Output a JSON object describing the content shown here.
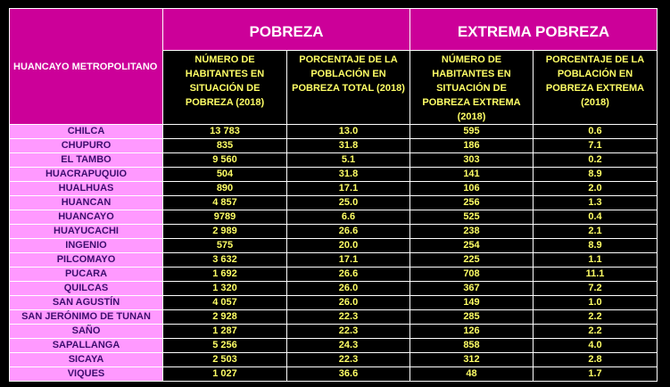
{
  "header": {
    "region_label": "HUANCAYO METROPOLITANO",
    "group_pobreza": "POBREZA",
    "group_extrema": "EXTREMA POBREZA",
    "col1": "NÚMERO DE HABITANTES EN SITUACIÓN DE POBREZA (2018)",
    "col2": "PORCENTAJE DE LA POBLACIÓN EN POBREZA TOTAL (2018)",
    "col3": "NÚMERO DE HABITANTES EN SITUACIÓN DE POBREZA EXTREMA (2018)",
    "col4": "PORCENTAJE DE LA POBLACIÓN EN POBREZA EXTREMA (2018)"
  },
  "rows": [
    {
      "district": "CHILCA",
      "hab_pobreza": "13 783",
      "pct_pobreza": "13.0",
      "hab_extrema": "595",
      "pct_extrema": "0.6"
    },
    {
      "district": "CHUPURO",
      "hab_pobreza": "835",
      "pct_pobreza": "31.8",
      "hab_extrema": "186",
      "pct_extrema": "7.1"
    },
    {
      "district": "EL TAMBO",
      "hab_pobreza": "9 560",
      "pct_pobreza": "5.1",
      "hab_extrema": "303",
      "pct_extrema": "0.2"
    },
    {
      "district": "HUACRAPUQUIO",
      "hab_pobreza": "504",
      "pct_pobreza": "31.8",
      "hab_extrema": "141",
      "pct_extrema": "8.9"
    },
    {
      "district": "HUALHUAS",
      "hab_pobreza": "890",
      "pct_pobreza": "17.1",
      "hab_extrema": "106",
      "pct_extrema": "2.0"
    },
    {
      "district": "HUANCAN",
      "hab_pobreza": "4 857",
      "pct_pobreza": "25.0",
      "hab_extrema": "256",
      "pct_extrema": "1.3"
    },
    {
      "district": "HUANCAYO",
      "hab_pobreza": "9789",
      "pct_pobreza": "6.6",
      "hab_extrema": "525",
      "pct_extrema": "0.4"
    },
    {
      "district": "HUAYUCACHI",
      "hab_pobreza": "2 989",
      "pct_pobreza": "26.6",
      "hab_extrema": "238",
      "pct_extrema": "2.1"
    },
    {
      "district": "INGENIO",
      "hab_pobreza": "575",
      "pct_pobreza": "20.0",
      "hab_extrema": "254",
      "pct_extrema": "8.9"
    },
    {
      "district": "PILCOMAYO",
      "hab_pobreza": "3 632",
      "pct_pobreza": "17.1",
      "hab_extrema": "225",
      "pct_extrema": "1.1"
    },
    {
      "district": "PUCARA",
      "hab_pobreza": "1 692",
      "pct_pobreza": "26.6",
      "hab_extrema": "708",
      "pct_extrema": "11.1"
    },
    {
      "district": "QUILCAS",
      "hab_pobreza": "1 320",
      "pct_pobreza": "26.0",
      "hab_extrema": "367",
      "pct_extrema": "7.2"
    },
    {
      "district": "SAN AGUSTÍN",
      "hab_pobreza": "4 057",
      "pct_pobreza": "26.0",
      "hab_extrema": "149",
      "pct_extrema": "1.0"
    },
    {
      "district": "SAN JERÓNIMO DE TUNAN",
      "hab_pobreza": "2 928",
      "pct_pobreza": "22.3",
      "hab_extrema": "285",
      "pct_extrema": "2.2"
    },
    {
      "district": "SAÑO",
      "hab_pobreza": "1 287",
      "pct_pobreza": "22.3",
      "hab_extrema": "126",
      "pct_extrema": "2.2"
    },
    {
      "district": "SAPALLANGA",
      "hab_pobreza": "5 256",
      "pct_pobreza": "24.3",
      "hab_extrema": "858",
      "pct_extrema": "4.0"
    },
    {
      "district": "SICAYA",
      "hab_pobreza": "2 503",
      "pct_pobreza": "22.3",
      "hab_extrema": "312",
      "pct_extrema": "2.8"
    },
    {
      "district": "VIQUES",
      "hab_pobreza": "1 027",
      "pct_pobreza": "36.6",
      "hab_extrema": "48",
      "pct_extrema": "1.7"
    }
  ],
  "colors": {
    "header_magenta": "#cc0099",
    "district_pink": "#ff99ff",
    "district_text": "#3c0d6e",
    "value_yellow": "#ffff66",
    "background": "#000000"
  }
}
